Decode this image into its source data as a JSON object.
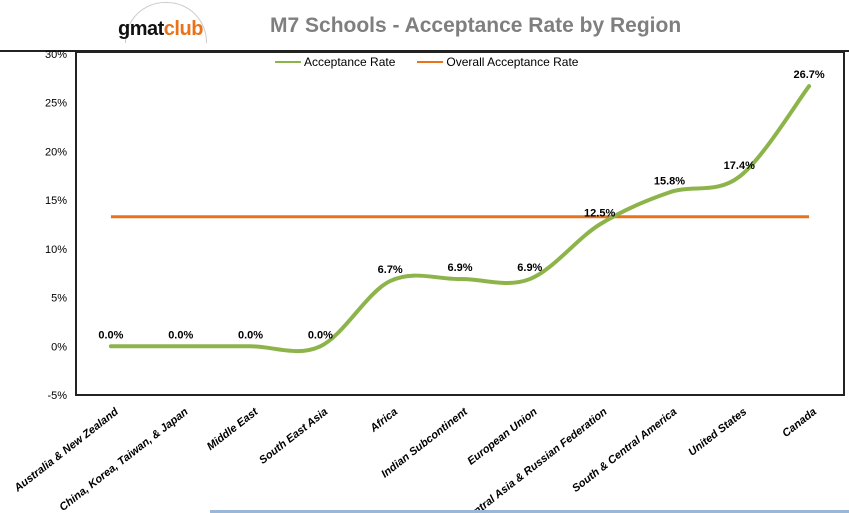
{
  "logo": {
    "part1": "gmat",
    "part2": "club"
  },
  "chart_data": {
    "type": "line",
    "title": "M7 Schools - Acceptance Rate by Region",
    "categories": [
      "Australia & New Zealand",
      "China, Korea, Taiwan, & Japan",
      "Middle East",
      "South East Asia",
      "Africa",
      "Indian Subcontinent",
      "European Union",
      "Central Asia & Russian Federation",
      "South & Central America",
      "United States",
      "Canada"
    ],
    "series": [
      {
        "name": "Acceptance Rate",
        "color": "#8db44a",
        "values": [
          0.0,
          0.0,
          0.0,
          0.0,
          6.7,
          6.9,
          6.9,
          12.5,
          15.8,
          17.4,
          26.7
        ],
        "labels": [
          "0.0%",
          "0.0%",
          "0.0%",
          "0.0%",
          "6.7%",
          "6.9%",
          "6.9%",
          "12.5%",
          "15.8%",
          "17.4%",
          "26.7%"
        ]
      },
      {
        "name": "Overall Acceptance Rate",
        "color": "#e8731a",
        "values": [
          13.3,
          13.3,
          13.3,
          13.3,
          13.3,
          13.3,
          13.3,
          13.3,
          13.3,
          13.3,
          13.3
        ]
      }
    ],
    "ylim": [
      -5,
      30
    ],
    "yticks": [
      -5,
      0,
      5,
      10,
      15,
      20,
      25,
      30
    ],
    "ytick_labels": [
      "-5%",
      "0%",
      "5%",
      "10%",
      "15%",
      "20%",
      "25%",
      "30%"
    ],
    "legend": "top-center",
    "grid": false
  }
}
